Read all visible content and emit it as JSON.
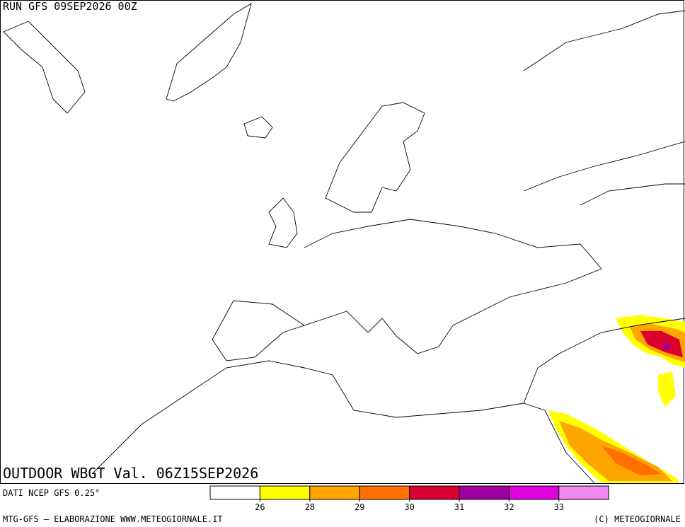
{
  "header": {
    "run": "RUN GFS 09SEP2026 00Z"
  },
  "map": {
    "title": "OUTDOOR WBGT Val. 06Z15SEP2026"
  },
  "legend": {
    "colors": [
      "#ffffff",
      "#ffff00",
      "#ffa500",
      "#ff7000",
      "#dc0030",
      "#a000a0",
      "#e000e0",
      "#ee88ee"
    ],
    "bounds": [
      26,
      28,
      29,
      30,
      31,
      32,
      33
    ]
  },
  "footer": {
    "source": "DATI NCEP GFS 0.25°",
    "credit": "MTG-GFS — ELABORAZIONE WWW.METEOGIORNALE.IT",
    "copyright": "(C) METEOGIORNALE"
  }
}
